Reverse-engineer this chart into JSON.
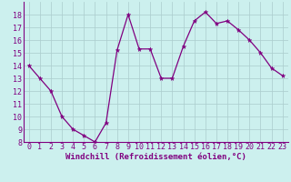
{
  "x": [
    0,
    1,
    2,
    3,
    4,
    5,
    6,
    7,
    8,
    9,
    10,
    11,
    12,
    13,
    14,
    15,
    16,
    17,
    18,
    19,
    20,
    21,
    22,
    23
  ],
  "y": [
    14,
    13,
    12,
    10,
    9,
    8.5,
    8,
    9.5,
    15.2,
    18,
    15.3,
    15.3,
    13,
    13,
    15.5,
    17.5,
    18.2,
    17.3,
    17.5,
    16.8,
    16,
    15,
    13.8,
    13.2
  ],
  "line_color": "#800080",
  "marker_color": "#800080",
  "bg_color": "#CCF0EE",
  "grid_color": "#AACCCC",
  "fig_bg": "#CCF0EE",
  "xlabel": "Windchill (Refroidissement éolien,°C)",
  "xlabel_color": "#800080",
  "tick_color": "#800080",
  "spine_color": "#800080",
  "ylim": [
    8,
    19
  ],
  "xlim": [
    -0.5,
    23.5
  ],
  "yticks": [
    8,
    9,
    10,
    11,
    12,
    13,
    14,
    15,
    16,
    17,
    18
  ],
  "xticks": [
    0,
    1,
    2,
    3,
    4,
    5,
    6,
    7,
    8,
    9,
    10,
    11,
    12,
    13,
    14,
    15,
    16,
    17,
    18,
    19,
    20,
    21,
    22,
    23
  ],
  "label_fontsize": 6.5,
  "tick_fontsize": 6.0,
  "marker_size": 3.5,
  "line_width": 0.9
}
